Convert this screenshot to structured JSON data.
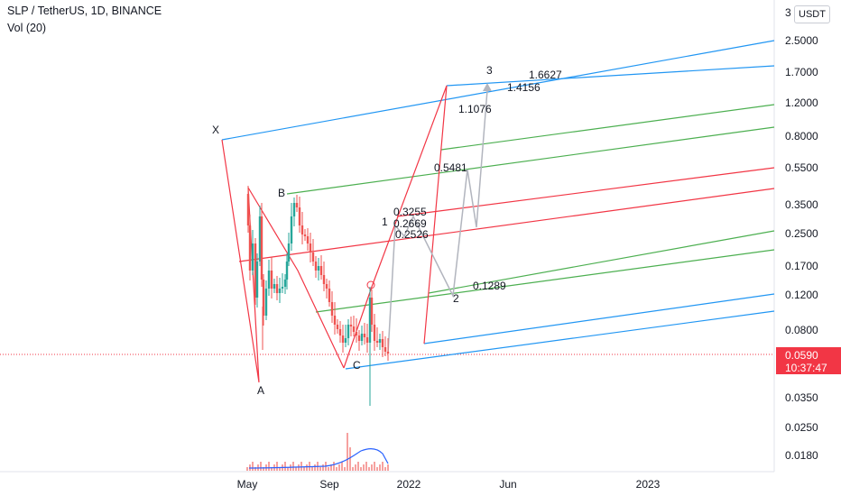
{
  "header": {
    "symbol_line": "SLP / TetherUS, 1D, BINANCE",
    "volume_line": "Vol (20)"
  },
  "currency": "USDT",
  "price_tag": {
    "price": "0.0590",
    "countdown": "10:37:47"
  },
  "colors": {
    "blue": "#2196f3",
    "green": "#4caf50",
    "red": "#f23645",
    "gray_projection": "#b2b5be",
    "candle_up": "#26a69a",
    "candle_down": "#ef5350",
    "volume_ma": "#2962ff"
  },
  "chart_data": {
    "type": "candlestick",
    "y_scale": "log",
    "y_ticks": [
      "3",
      "2.5000",
      "1.7000",
      "1.2000",
      "0.8000",
      "0.5500",
      "0.3500",
      "0.2500",
      "0.1700",
      "0.1200",
      "0.0800",
      "0.0350",
      "0.0250",
      "0.0180"
    ],
    "x_ticks": [
      "May",
      "Sep",
      "2022",
      "Jun",
      "2023"
    ],
    "last_price": 0.059,
    "pattern_points": [
      "X",
      "A",
      "B",
      "C"
    ],
    "projection_points": [
      "1",
      "2",
      "3"
    ],
    "fib_labels": [
      "1.6627",
      "1.4156",
      "1.1076",
      "0.5481",
      "0.3255",
      "0.2669",
      "0.2526",
      "0.1289"
    ]
  }
}
